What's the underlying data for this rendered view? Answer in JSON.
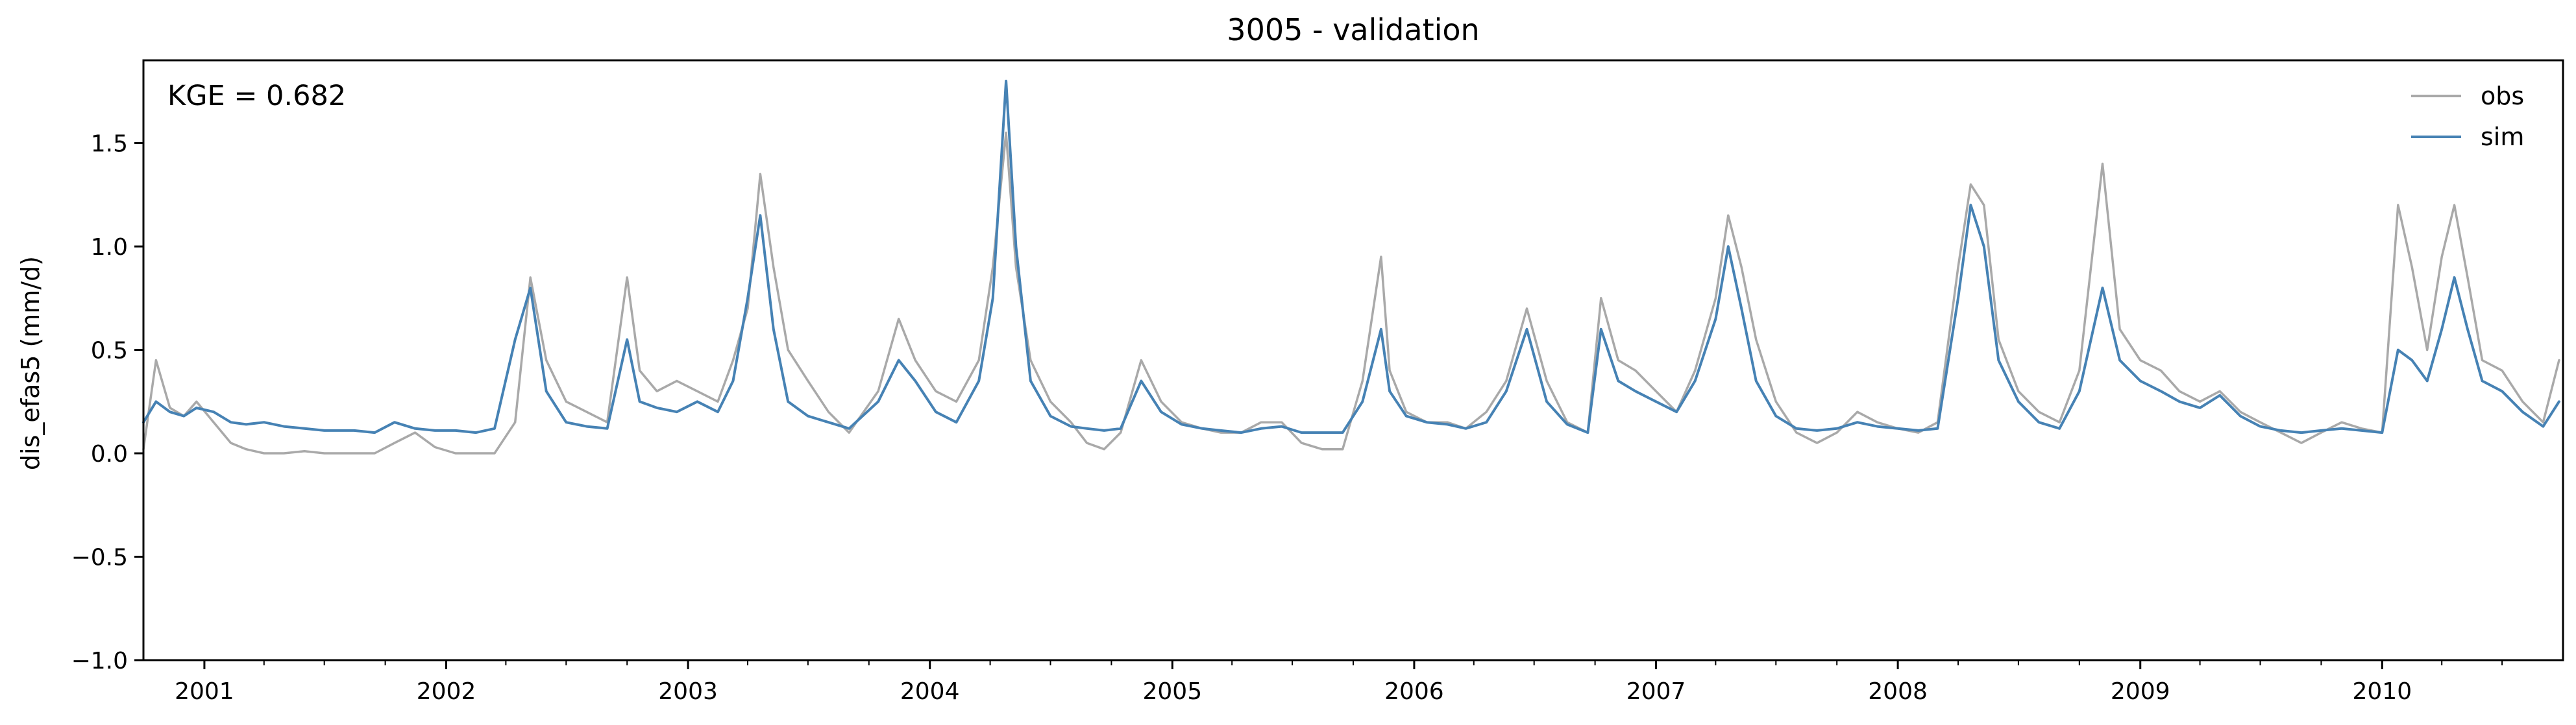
{
  "chart_data": {
    "type": "line",
    "title": "3005 - validation",
    "xlabel": "",
    "ylabel": "dis_efas5 (mm/d)",
    "ylim": [
      -1.0,
      1.9
    ],
    "xlim": [
      "2000-10-01",
      "2010-10-01"
    ],
    "yticks": [
      -1.0,
      -0.5,
      0.0,
      0.5,
      1.0,
      1.5
    ],
    "ytick_labels": [
      "−1.0",
      "−0.5",
      "0.0",
      "0.5",
      "1.0",
      "1.5"
    ],
    "xticks": [
      "2001-01-01",
      "2002-01-01",
      "2003-01-01",
      "2004-01-01",
      "2005-01-01",
      "2006-01-01",
      "2007-01-01",
      "2008-01-01",
      "2009-01-01",
      "2010-01-01"
    ],
    "xtick_labels": [
      "2001",
      "2002",
      "2003",
      "2004",
      "2005",
      "2006",
      "2007",
      "2008",
      "2009",
      "2010"
    ],
    "grid": false,
    "legend": "top-right",
    "annotation": "KGE = 0.682",
    "series": [
      {
        "name": "obs",
        "color": "#a9a9a9",
        "x": [
          "2000-10-01",
          "2000-10-20",
          "2000-11-10",
          "2000-12-01",
          "2000-12-20",
          "2001-01-15",
          "2001-02-10",
          "2001-03-05",
          "2001-04-01",
          "2001-05-01",
          "2001-06-01",
          "2001-07-01",
          "2001-08-15",
          "2001-09-15",
          "2001-10-15",
          "2001-11-15",
          "2001-12-15",
          "2002-01-15",
          "2002-02-15",
          "2002-03-15",
          "2002-04-15",
          "2002-05-08",
          "2002-06-01",
          "2002-07-01",
          "2002-08-01",
          "2002-09-01",
          "2002-10-01",
          "2002-10-20",
          "2002-11-15",
          "2002-12-15",
          "2003-01-15",
          "2003-02-15",
          "2003-03-10",
          "2003-04-01",
          "2003-04-20",
          "2003-05-10",
          "2003-06-01",
          "2003-07-01",
          "2003-08-01",
          "2003-09-01",
          "2003-10-15",
          "2003-11-15",
          "2003-12-10",
          "2004-01-10",
          "2004-02-10",
          "2004-03-15",
          "2004-04-05",
          "2004-04-25",
          "2004-05-10",
          "2004-06-01",
          "2004-07-01",
          "2004-08-01",
          "2004-08-25",
          "2004-09-20",
          "2004-10-15",
          "2004-11-15",
          "2004-12-15",
          "2005-01-15",
          "2005-02-15",
          "2005-03-15",
          "2005-04-15",
          "2005-05-15",
          "2005-06-15",
          "2005-07-15",
          "2005-08-15",
          "2005-09-15",
          "2005-10-15",
          "2005-11-12",
          "2005-11-25",
          "2005-12-20",
          "2006-01-20",
          "2006-02-20",
          "2006-03-20",
          "2006-04-20",
          "2006-05-20",
          "2006-06-20",
          "2006-07-20",
          "2006-08-20",
          "2006-09-20",
          "2006-10-10",
          "2006-11-05",
          "2006-12-01",
          "2007-01-01",
          "2007-02-01",
          "2007-03-01",
          "2007-04-01",
          "2007-04-20",
          "2007-05-10",
          "2007-06-01",
          "2007-07-01",
          "2007-08-01",
          "2007-09-01",
          "2007-10-01",
          "2007-11-01",
          "2007-12-01",
          "2008-01-01",
          "2008-02-01",
          "2008-03-01",
          "2008-04-01",
          "2008-04-20",
          "2008-05-10",
          "2008-06-01",
          "2008-07-01",
          "2008-08-01",
          "2008-09-01",
          "2008-10-01",
          "2008-11-05",
          "2008-12-01",
          "2009-01-01",
          "2009-02-01",
          "2009-03-01",
          "2009-04-01",
          "2009-05-01",
          "2009-06-01",
          "2009-07-01",
          "2009-08-01",
          "2009-09-01",
          "2009-10-01",
          "2009-11-01",
          "2009-12-01",
          "2010-01-01",
          "2010-01-25",
          "2010-02-15",
          "2010-03-10",
          "2010-04-01",
          "2010-04-20",
          "2010-05-10",
          "2010-06-01",
          "2010-07-01",
          "2010-08-01",
          "2010-09-01",
          "2010-09-25"
        ],
        "values": [
          0.02,
          0.45,
          0.22,
          0.18,
          0.25,
          0.15,
          0.05,
          0.02,
          0.0,
          0.0,
          0.01,
          0.0,
          0.0,
          0.0,
          0.05,
          0.1,
          0.03,
          0.0,
          0.0,
          0.0,
          0.15,
          0.85,
          0.45,
          0.25,
          0.2,
          0.15,
          0.85,
          0.4,
          0.3,
          0.35,
          0.3,
          0.25,
          0.45,
          0.7,
          1.35,
          0.9,
          0.5,
          0.35,
          0.2,
          0.1,
          0.3,
          0.65,
          0.45,
          0.3,
          0.25,
          0.45,
          0.9,
          1.55,
          0.9,
          0.45,
          0.25,
          0.15,
          0.05,
          0.02,
          0.1,
          0.45,
          0.25,
          0.15,
          0.12,
          0.1,
          0.1,
          0.15,
          0.15,
          0.05,
          0.02,
          0.02,
          0.35,
          0.95,
          0.4,
          0.2,
          0.15,
          0.15,
          0.12,
          0.2,
          0.35,
          0.7,
          0.35,
          0.15,
          0.1,
          0.75,
          0.45,
          0.4,
          0.3,
          0.2,
          0.4,
          0.75,
          1.15,
          0.9,
          0.55,
          0.25,
          0.1,
          0.05,
          0.1,
          0.2,
          0.15,
          0.12,
          0.1,
          0.15,
          0.9,
          1.3,
          1.2,
          0.55,
          0.3,
          0.2,
          0.15,
          0.4,
          1.4,
          0.6,
          0.45,
          0.4,
          0.3,
          0.25,
          0.3,
          0.2,
          0.15,
          0.1,
          0.05,
          0.1,
          0.15,
          0.12,
          0.1,
          1.2,
          0.9,
          0.5,
          0.95,
          1.2,
          0.85,
          0.45,
          0.4,
          0.25,
          0.15,
          0.45
        ]
      },
      {
        "name": "sim",
        "color": "#4682b4",
        "x": [
          "2000-10-01",
          "2000-10-20",
          "2000-11-10",
          "2000-12-01",
          "2000-12-20",
          "2001-01-15",
          "2001-02-10",
          "2001-03-05",
          "2001-04-01",
          "2001-05-01",
          "2001-06-01",
          "2001-07-01",
          "2001-08-15",
          "2001-09-15",
          "2001-10-15",
          "2001-11-15",
          "2001-12-15",
          "2002-01-15",
          "2002-02-15",
          "2002-03-15",
          "2002-04-15",
          "2002-05-08",
          "2002-06-01",
          "2002-07-01",
          "2002-08-01",
          "2002-09-01",
          "2002-10-01",
          "2002-10-20",
          "2002-11-15",
          "2002-12-15",
          "2003-01-15",
          "2003-02-15",
          "2003-03-10",
          "2003-04-01",
          "2003-04-20",
          "2003-05-10",
          "2003-06-01",
          "2003-07-01",
          "2003-08-01",
          "2003-09-01",
          "2003-10-15",
          "2003-11-15",
          "2003-12-10",
          "2004-01-10",
          "2004-02-10",
          "2004-03-15",
          "2004-04-05",
          "2004-04-25",
          "2004-05-10",
          "2004-06-01",
          "2004-07-01",
          "2004-08-01",
          "2004-08-25",
          "2004-09-20",
          "2004-10-15",
          "2004-11-15",
          "2004-12-15",
          "2005-01-15",
          "2005-02-15",
          "2005-03-15",
          "2005-04-15",
          "2005-05-15",
          "2005-06-15",
          "2005-07-15",
          "2005-08-15",
          "2005-09-15",
          "2005-10-15",
          "2005-11-12",
          "2005-11-25",
          "2005-12-20",
          "2006-01-20",
          "2006-02-20",
          "2006-03-20",
          "2006-04-20",
          "2006-05-20",
          "2006-06-20",
          "2006-07-20",
          "2006-08-20",
          "2006-09-20",
          "2006-10-10",
          "2006-11-05",
          "2006-12-01",
          "2007-01-01",
          "2007-02-01",
          "2007-03-01",
          "2007-04-01",
          "2007-04-20",
          "2007-05-10",
          "2007-06-01",
          "2007-07-01",
          "2007-08-01",
          "2007-09-01",
          "2007-10-01",
          "2007-11-01",
          "2007-12-01",
          "2008-01-01",
          "2008-02-01",
          "2008-03-01",
          "2008-04-01",
          "2008-04-20",
          "2008-05-10",
          "2008-06-01",
          "2008-07-01",
          "2008-08-01",
          "2008-09-01",
          "2008-10-01",
          "2008-11-05",
          "2008-12-01",
          "2009-01-01",
          "2009-02-01",
          "2009-03-01",
          "2009-04-01",
          "2009-05-01",
          "2009-06-01",
          "2009-07-01",
          "2009-08-01",
          "2009-09-01",
          "2009-10-01",
          "2009-11-01",
          "2009-12-01",
          "2010-01-01",
          "2010-01-25",
          "2010-02-15",
          "2010-03-10",
          "2010-04-01",
          "2010-04-20",
          "2010-05-10",
          "2010-06-01",
          "2010-07-01",
          "2010-08-01",
          "2010-09-01",
          "2010-09-25"
        ],
        "values": [
          0.15,
          0.25,
          0.2,
          0.18,
          0.22,
          0.2,
          0.15,
          0.14,
          0.15,
          0.13,
          0.12,
          0.11,
          0.11,
          0.1,
          0.15,
          0.12,
          0.11,
          0.11,
          0.1,
          0.12,
          0.55,
          0.8,
          0.3,
          0.15,
          0.13,
          0.12,
          0.55,
          0.25,
          0.22,
          0.2,
          0.25,
          0.2,
          0.35,
          0.75,
          1.15,
          0.6,
          0.25,
          0.18,
          0.15,
          0.12,
          0.25,
          0.45,
          0.35,
          0.2,
          0.15,
          0.35,
          0.75,
          1.8,
          1.0,
          0.35,
          0.18,
          0.13,
          0.12,
          0.11,
          0.12,
          0.35,
          0.2,
          0.14,
          0.12,
          0.11,
          0.1,
          0.12,
          0.13,
          0.1,
          0.1,
          0.1,
          0.25,
          0.6,
          0.3,
          0.18,
          0.15,
          0.14,
          0.12,
          0.15,
          0.3,
          0.6,
          0.25,
          0.14,
          0.1,
          0.6,
          0.35,
          0.3,
          0.25,
          0.2,
          0.35,
          0.65,
          1.0,
          0.7,
          0.35,
          0.18,
          0.12,
          0.11,
          0.12,
          0.15,
          0.13,
          0.12,
          0.11,
          0.12,
          0.75,
          1.2,
          1.0,
          0.45,
          0.25,
          0.15,
          0.12,
          0.3,
          0.8,
          0.45,
          0.35,
          0.3,
          0.25,
          0.22,
          0.28,
          0.18,
          0.13,
          0.11,
          0.1,
          0.11,
          0.12,
          0.11,
          0.1,
          0.5,
          0.45,
          0.35,
          0.6,
          0.85,
          0.6,
          0.35,
          0.3,
          0.2,
          0.13,
          0.25
        ]
      }
    ]
  }
}
